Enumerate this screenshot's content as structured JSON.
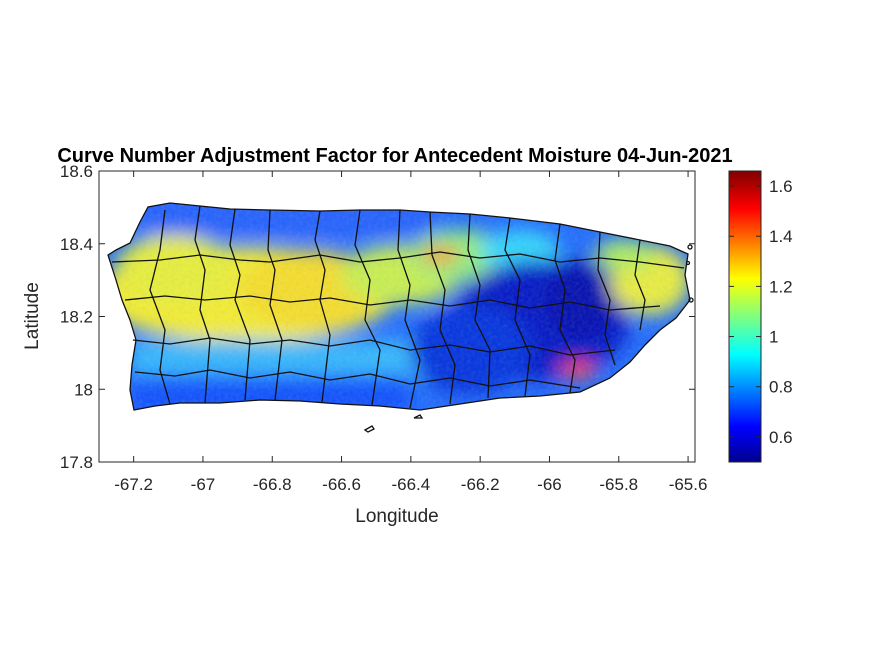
{
  "chart_data": {
    "type": "heatmap",
    "title": "Curve Number Adjustment Factor for Antecedent Moisture 04-Jun-2021",
    "xlabel": "Longitude",
    "ylabel": "Latitude",
    "xlim": [
      -67.3,
      -65.58
    ],
    "ylim": [
      17.8,
      18.6
    ],
    "xticks": [
      -67.2,
      -67,
      -66.8,
      -66.6,
      -66.4,
      -66.2,
      -66,
      -65.8,
      -65.6
    ],
    "xtick_labels": [
      "-67.2",
      "-67",
      "-66.8",
      "-66.6",
      "-66.4",
      "-66.2",
      "-66",
      "-65.8",
      "-65.6"
    ],
    "yticks": [
      17.8,
      18,
      18.2,
      18.4,
      18.6
    ],
    "ytick_labels": [
      "17.8",
      "18",
      "18.2",
      "18.4",
      "18.6"
    ],
    "colorbar": {
      "colormap": "jet",
      "clim": [
        0.5,
        1.66
      ],
      "ticks": [
        0.6,
        0.8,
        1,
        1.2,
        1.4,
        1.6
      ],
      "tick_labels": [
        "0.6",
        "0.8",
        "1",
        "1.2",
        "1.4",
        "1.6"
      ]
    },
    "grid": false,
    "region": "Puerto Rico (municipality boundaries overlaid)",
    "value_pattern": [
      {
        "area": "north coast",
        "approx_value": 0.75
      },
      {
        "area": "west and central interior",
        "approx_value": 1.2
      },
      {
        "area": "south coast",
        "approx_value": 0.8
      },
      {
        "area": "east-central",
        "approx_value": 0.6
      },
      {
        "area": "far east",
        "approx_value": 1.15
      },
      {
        "area": "southeast hotspot",
        "approx_value": 1.55
      }
    ]
  }
}
